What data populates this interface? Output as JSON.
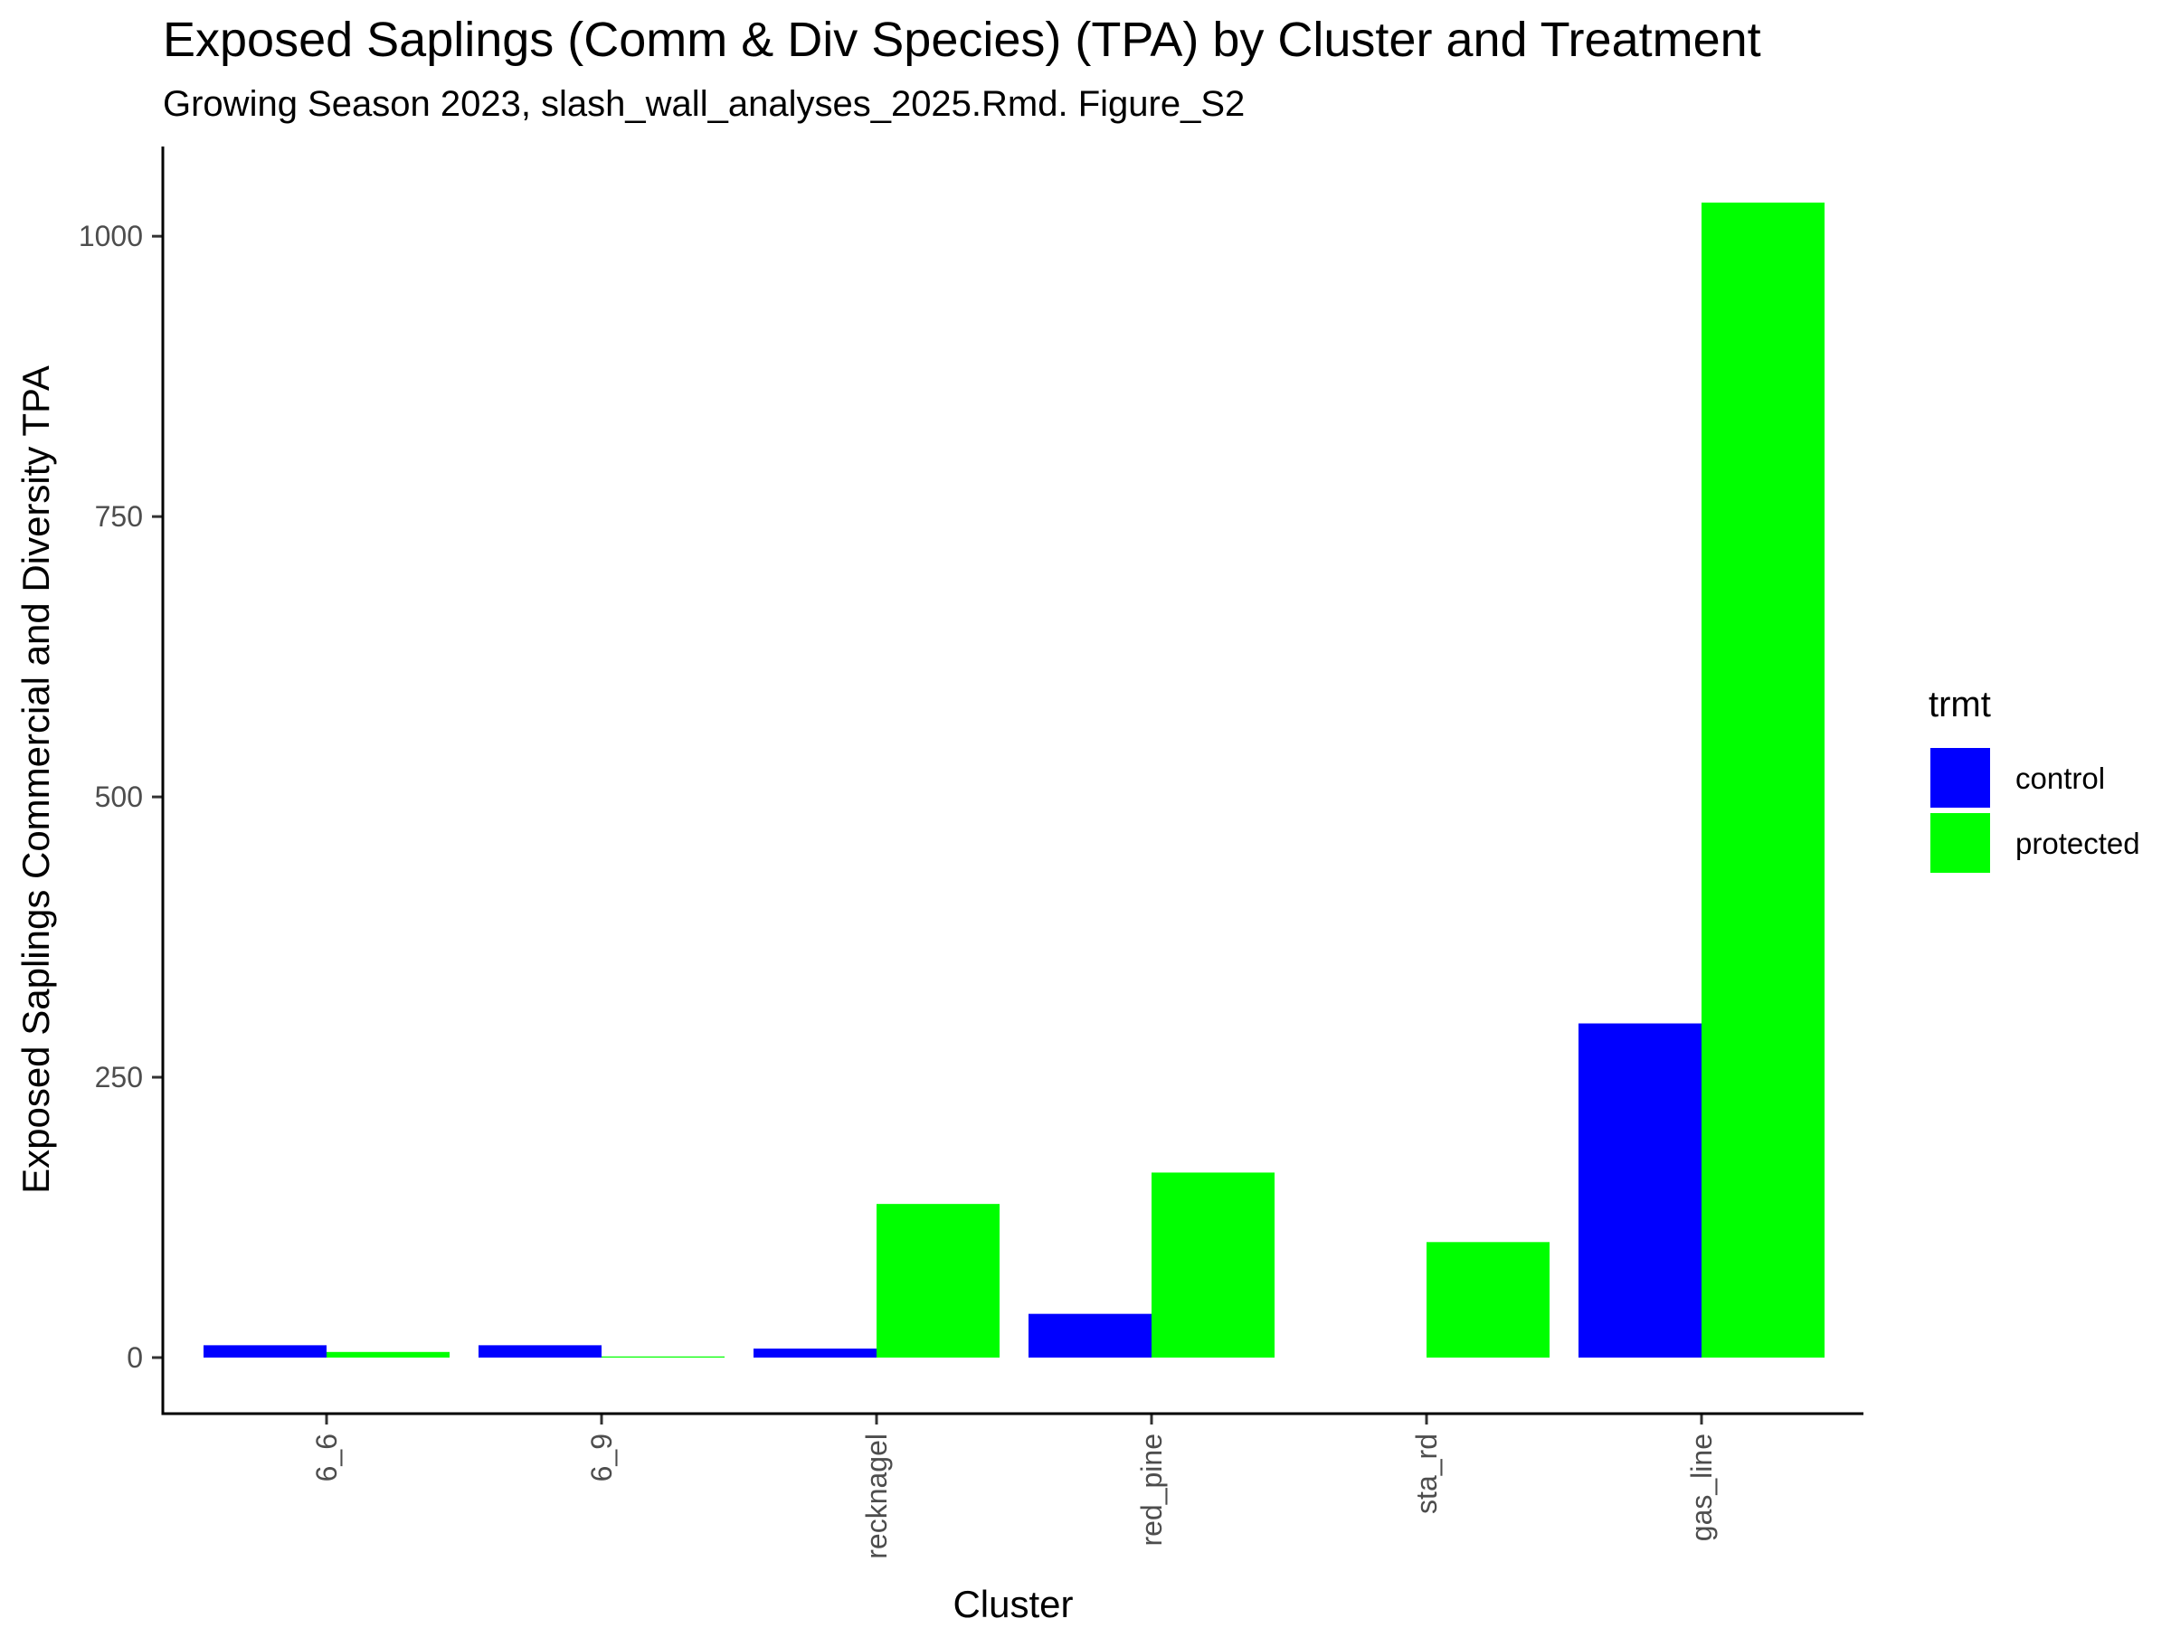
{
  "chart_data": {
    "type": "bar",
    "title": "Exposed Saplings (Comm & Div Species) (TPA) by Cluster and Treatment",
    "subtitle": "Growing Season 2023, slash_wall_analyses_2025.Rmd. Figure_S2",
    "xlabel": "Cluster",
    "ylabel": "Exposed Saplings Commercial and Diversity TPA",
    "categories": [
      "6_6",
      "6_9",
      "recknagel",
      "red_pine",
      "sta_rd",
      "gas_line"
    ],
    "series": [
      {
        "name": "control",
        "color": "#0000ff",
        "values": [
          11,
          11,
          8,
          39,
          0,
          298
        ]
      },
      {
        "name": "protected",
        "color": "#00ff00",
        "values": [
          5,
          1,
          137,
          165,
          103,
          1030
        ]
      }
    ],
    "ylim": [
      -50,
      1080
    ],
    "yticks": [
      0,
      250,
      500,
      750,
      1000
    ],
    "legend": {
      "title": "trmt",
      "position": "right"
    },
    "grid": false
  }
}
